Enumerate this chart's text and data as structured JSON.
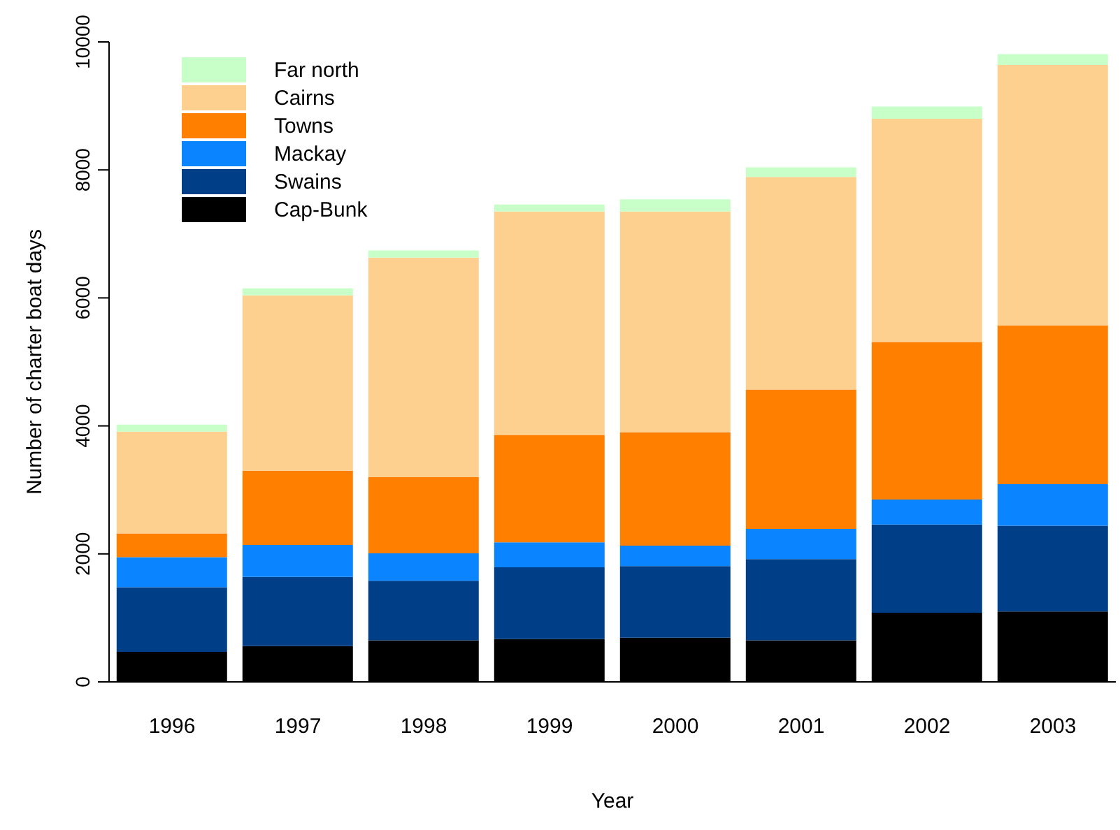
{
  "chart_data": {
    "type": "bar",
    "stacked": true,
    "xlabel": "Year",
    "ylabel": "Number of charter boat days",
    "categories": [
      "1996",
      "1997",
      "1998",
      "1999",
      "2000",
      "2001",
      "2002",
      "2003"
    ],
    "series": [
      {
        "name": "Cap-Bunk",
        "color": "#000000",
        "values": [
          470,
          560,
          650,
          670,
          690,
          650,
          1080,
          1100
        ]
      },
      {
        "name": "Swains",
        "color": "#003f87",
        "values": [
          1010,
          1080,
          930,
          1120,
          1120,
          1270,
          1380,
          1340
        ]
      },
      {
        "name": "Mackay",
        "color": "#0a84ff",
        "values": [
          470,
          500,
          430,
          390,
          320,
          470,
          390,
          650
        ]
      },
      {
        "name": "Towns",
        "color": "#ff8000",
        "values": [
          370,
          1160,
          1190,
          1680,
          1770,
          2180,
          2460,
          2480
        ]
      },
      {
        "name": "Cairns",
        "color": "#fdd08f",
        "values": [
          1590,
          2740,
          3430,
          3490,
          3450,
          3320,
          3490,
          4070
        ]
      },
      {
        "name": "Far north",
        "color": "#c8ffc8",
        "values": [
          110,
          110,
          110,
          110,
          190,
          150,
          190,
          170
        ]
      }
    ],
    "ylim": [
      0,
      10000
    ],
    "yticks": [
      0,
      2000,
      4000,
      6000,
      8000,
      10000
    ],
    "grid": false,
    "legend": "top left"
  }
}
